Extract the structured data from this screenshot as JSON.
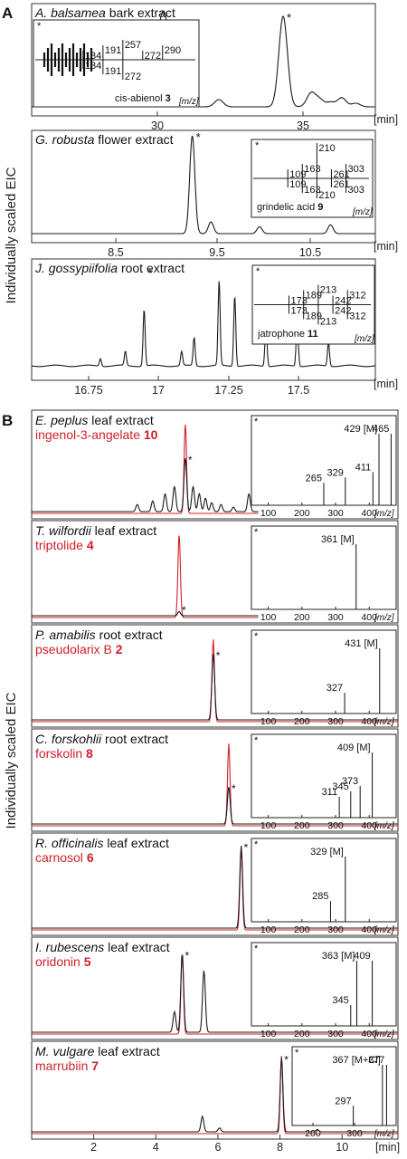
{
  "panel_a": {
    "label": "A",
    "ylabel": "Individually scaled EIC",
    "unit": "[min]",
    "mz_unit": "[m/z]",
    "peak_marker": "*"
  },
  "panel_b": {
    "label": "B",
    "ylabel": "Individually scaled EIC",
    "unit": "[min]",
    "mz_unit": "[m/z]",
    "peak_marker": "*"
  },
  "colors": {
    "trace": "#1a1a1a",
    "standard": "#d0202a"
  },
  "chart_data": [
    {
      "type": "line",
      "species": "A. balsamea",
      "tissue": "bark extract",
      "compound": "cis-abienol",
      "compound_number": "3",
      "xticks": [
        "30",
        "35"
      ],
      "xlim": [
        26.5,
        38.8
      ],
      "peaks": [
        [
          30.0,
          0.12
        ],
        [
          30.2,
          0.05
        ],
        [
          30.9,
          0.2
        ],
        [
          31.05,
          0.38
        ],
        [
          31.2,
          0.45
        ],
        [
          31.35,
          0.55
        ],
        [
          33.2,
          0.08
        ],
        [
          35.5,
          1.0
        ],
        [
          36.5,
          0.15
        ],
        [
          36.8,
          0.08
        ],
        [
          37.2,
          0.05
        ],
        [
          37.6,
          0.1
        ],
        [
          38.1,
          0.04
        ]
      ],
      "star_rt": 35.5,
      "inset": {
        "mz_top": [
          "134",
          "191",
          "257",
          "272",
          "290"
        ],
        "mz_bottom": [
          "134",
          "191",
          "272"
        ]
      }
    },
    {
      "type": "line",
      "species": "G. robusta",
      "tissue": "flower extract",
      "compound": "grindelic acid",
      "compound_number": "9",
      "xticks": [
        "8.5",
        "9.5",
        "10.5"
      ],
      "xlim": [
        7.7,
        12.3
      ],
      "peaks": [
        [
          9.85,
          1.0
        ],
        [
          10.1,
          0.12
        ],
        [
          10.75,
          0.07
        ],
        [
          11.7,
          0.09
        ]
      ],
      "star_rt": 9.85,
      "inset": {
        "mz_top": [
          "109",
          "163",
          "210",
          "261",
          "303"
        ],
        "mz_bottom": [
          "109",
          "163",
          "210",
          "261",
          "303"
        ]
      }
    },
    {
      "type": "line",
      "species": "J. gossypiifolia",
      "tissue": "root extract",
      "compound": "jatrophone",
      "compound_number": "11",
      "xticks": [
        "16.75",
        "17",
        "17.25",
        "17.5"
      ],
      "xlim": [
        16.6,
        17.7
      ],
      "peaks": [
        [
          16.82,
          0.08
        ],
        [
          16.9,
          0.15
        ],
        [
          16.96,
          0.6
        ],
        [
          17.08,
          0.15
        ],
        [
          17.12,
          0.3
        ],
        [
          17.2,
          0.9
        ],
        [
          17.25,
          0.75
        ],
        [
          17.35,
          0.45
        ],
        [
          17.45,
          0.5
        ],
        [
          17.55,
          0.25
        ]
      ],
      "star_rt": 16.96,
      "inset": {
        "mz_top": [
          "173",
          "189",
          "213",
          "242",
          "312"
        ],
        "mz_bottom": [
          "173",
          "189",
          "213",
          "242",
          "312"
        ]
      }
    },
    {
      "type": "line",
      "species": "E. peplus",
      "tissue": "leaf extract",
      "compound": "ingenol-3-angelate",
      "compound_number": "10",
      "standard_rt": 4.95,
      "peaks": [
        [
          3.4,
          0.08
        ],
        [
          3.9,
          0.12
        ],
        [
          4.3,
          0.2
        ],
        [
          4.6,
          0.28
        ],
        [
          4.95,
          0.6
        ],
        [
          5.2,
          0.28
        ],
        [
          5.4,
          0.2
        ],
        [
          5.6,
          0.15
        ],
        [
          5.8,
          0.1
        ],
        [
          6.1,
          0.08
        ],
        [
          6.5,
          0.05
        ],
        [
          7.0,
          0.2
        ]
      ],
      "star_rt": 4.95,
      "inset": {
        "type": "bar",
        "mz_ticks": [
          "100",
          "200",
          "300",
          "400"
        ],
        "labels": [
          "265",
          "329",
          "411",
          "429 [M]",
          "465"
        ]
      }
    },
    {
      "type": "line",
      "species": "T. wilfordii",
      "tissue": "leaf extract",
      "compound": "triptolide",
      "compound_number": "4",
      "standard_rt": 4.75,
      "peaks": [
        [
          4.75,
          0.05
        ]
      ],
      "star_rt": 4.75,
      "inset": {
        "type": "bar",
        "mz_ticks": [
          "100",
          "200",
          "300",
          "400"
        ],
        "labels": [
          "361 [M]"
        ]
      }
    },
    {
      "type": "line",
      "species": "P. amabilis",
      "tissue": "root extract",
      "compound": "pseudolarix B",
      "compound_number": "2",
      "standard_rt": 5.85,
      "peaks": [
        [
          5.85,
          0.8
        ]
      ],
      "star_rt": 5.85,
      "inset": {
        "type": "bar",
        "mz_ticks": [
          "100",
          "200",
          "300",
          "400"
        ],
        "labels": [
          "327",
          "431 [M]"
        ]
      }
    },
    {
      "type": "line",
      "species": "C. forskohlii",
      "tissue": "root extract",
      "compound": "forskolin",
      "compound_number": "8",
      "standard_rt": 6.35,
      "peaks": [
        [
          6.35,
          0.45
        ]
      ],
      "star_rt": 6.35,
      "inset": {
        "type": "bar",
        "mz_ticks": [
          "100",
          "200",
          "300",
          "400"
        ],
        "labels": [
          "311",
          "345",
          "373",
          "409 [M]"
        ]
      }
    },
    {
      "type": "line",
      "species": "R. officinalis",
      "tissue": "leaf extract",
      "compound": "carnosol",
      "compound_number": "6",
      "standard_rt": 6.75,
      "peaks": [
        [
          6.75,
          1.0
        ]
      ],
      "star_rt": 6.75,
      "inset": {
        "type": "bar",
        "mz_ticks": [
          "100",
          "200",
          "300",
          "400"
        ],
        "labels": [
          "285",
          "329 [M]"
        ]
      }
    },
    {
      "type": "line",
      "species": "I. rubescens",
      "tissue": "leaf extract",
      "compound": "oridonin",
      "compound_number": "5",
      "standard_rt": 4.85,
      "peaks": [
        [
          4.6,
          0.25
        ],
        [
          4.85,
          0.95
        ],
        [
          5.55,
          0.75
        ]
      ],
      "star_rt": 4.85,
      "inset": {
        "type": "bar",
        "mz_ticks": [
          "100",
          "200",
          "300",
          "400"
        ],
        "labels": [
          "345",
          "363 [M]",
          "409"
        ]
      }
    },
    {
      "type": "line",
      "species": "M. vulgare",
      "tissue": "leaf extract",
      "compound": "marrubiin",
      "compound_number": "7",
      "standard_rt": 8.05,
      "peaks": [
        [
          5.5,
          0.2
        ],
        [
          6.05,
          0.05
        ],
        [
          8.05,
          0.95
        ],
        [
          9.2,
          0.03
        ]
      ],
      "star_rt": 8.05,
      "inset": {
        "type": "bar",
        "mz_ticks": [
          "200",
          "300"
        ],
        "labels": [
          "297",
          "367 [M+Cl]",
          "377"
        ]
      }
    }
  ],
  "panel_b_xaxis": {
    "xticks": [
      "2",
      "4",
      "6",
      "8",
      "10"
    ],
    "xlim": [
      0,
      11.8
    ]
  }
}
